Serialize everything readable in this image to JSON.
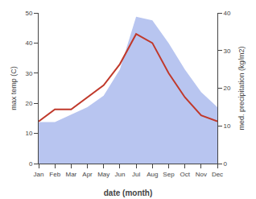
{
  "chart_data": {
    "type": "line",
    "xlabel": "date (month)",
    "ylabel": "max temp (C)",
    "y2label": "med. precipitation (kg/m2)",
    "categories": [
      "Jan",
      "Feb",
      "Mar",
      "Apr",
      "May",
      "Jun",
      "Jul",
      "Aug",
      "Sep",
      "Oct",
      "Nov",
      "Dec"
    ],
    "series": [
      {
        "type": "area",
        "axis": "y2",
        "color": "#b8c5f0",
        "values": [
          11,
          11,
          13,
          15,
          18,
          25,
          39,
          38,
          32,
          25,
          19,
          15
        ]
      },
      {
        "type": "line",
        "color": "#c0392b",
        "values": [
          14,
          18,
          18,
          22,
          26,
          33,
          43,
          40,
          30,
          22,
          16,
          14
        ]
      }
    ],
    "ylim": [
      0,
      50
    ],
    "yticks": [
      0,
      10,
      20,
      30,
      40,
      50
    ],
    "y2lim": [
      0,
      40
    ],
    "y2ticks": [
      0,
      10,
      20,
      30,
      40
    ],
    "grid": false
  }
}
